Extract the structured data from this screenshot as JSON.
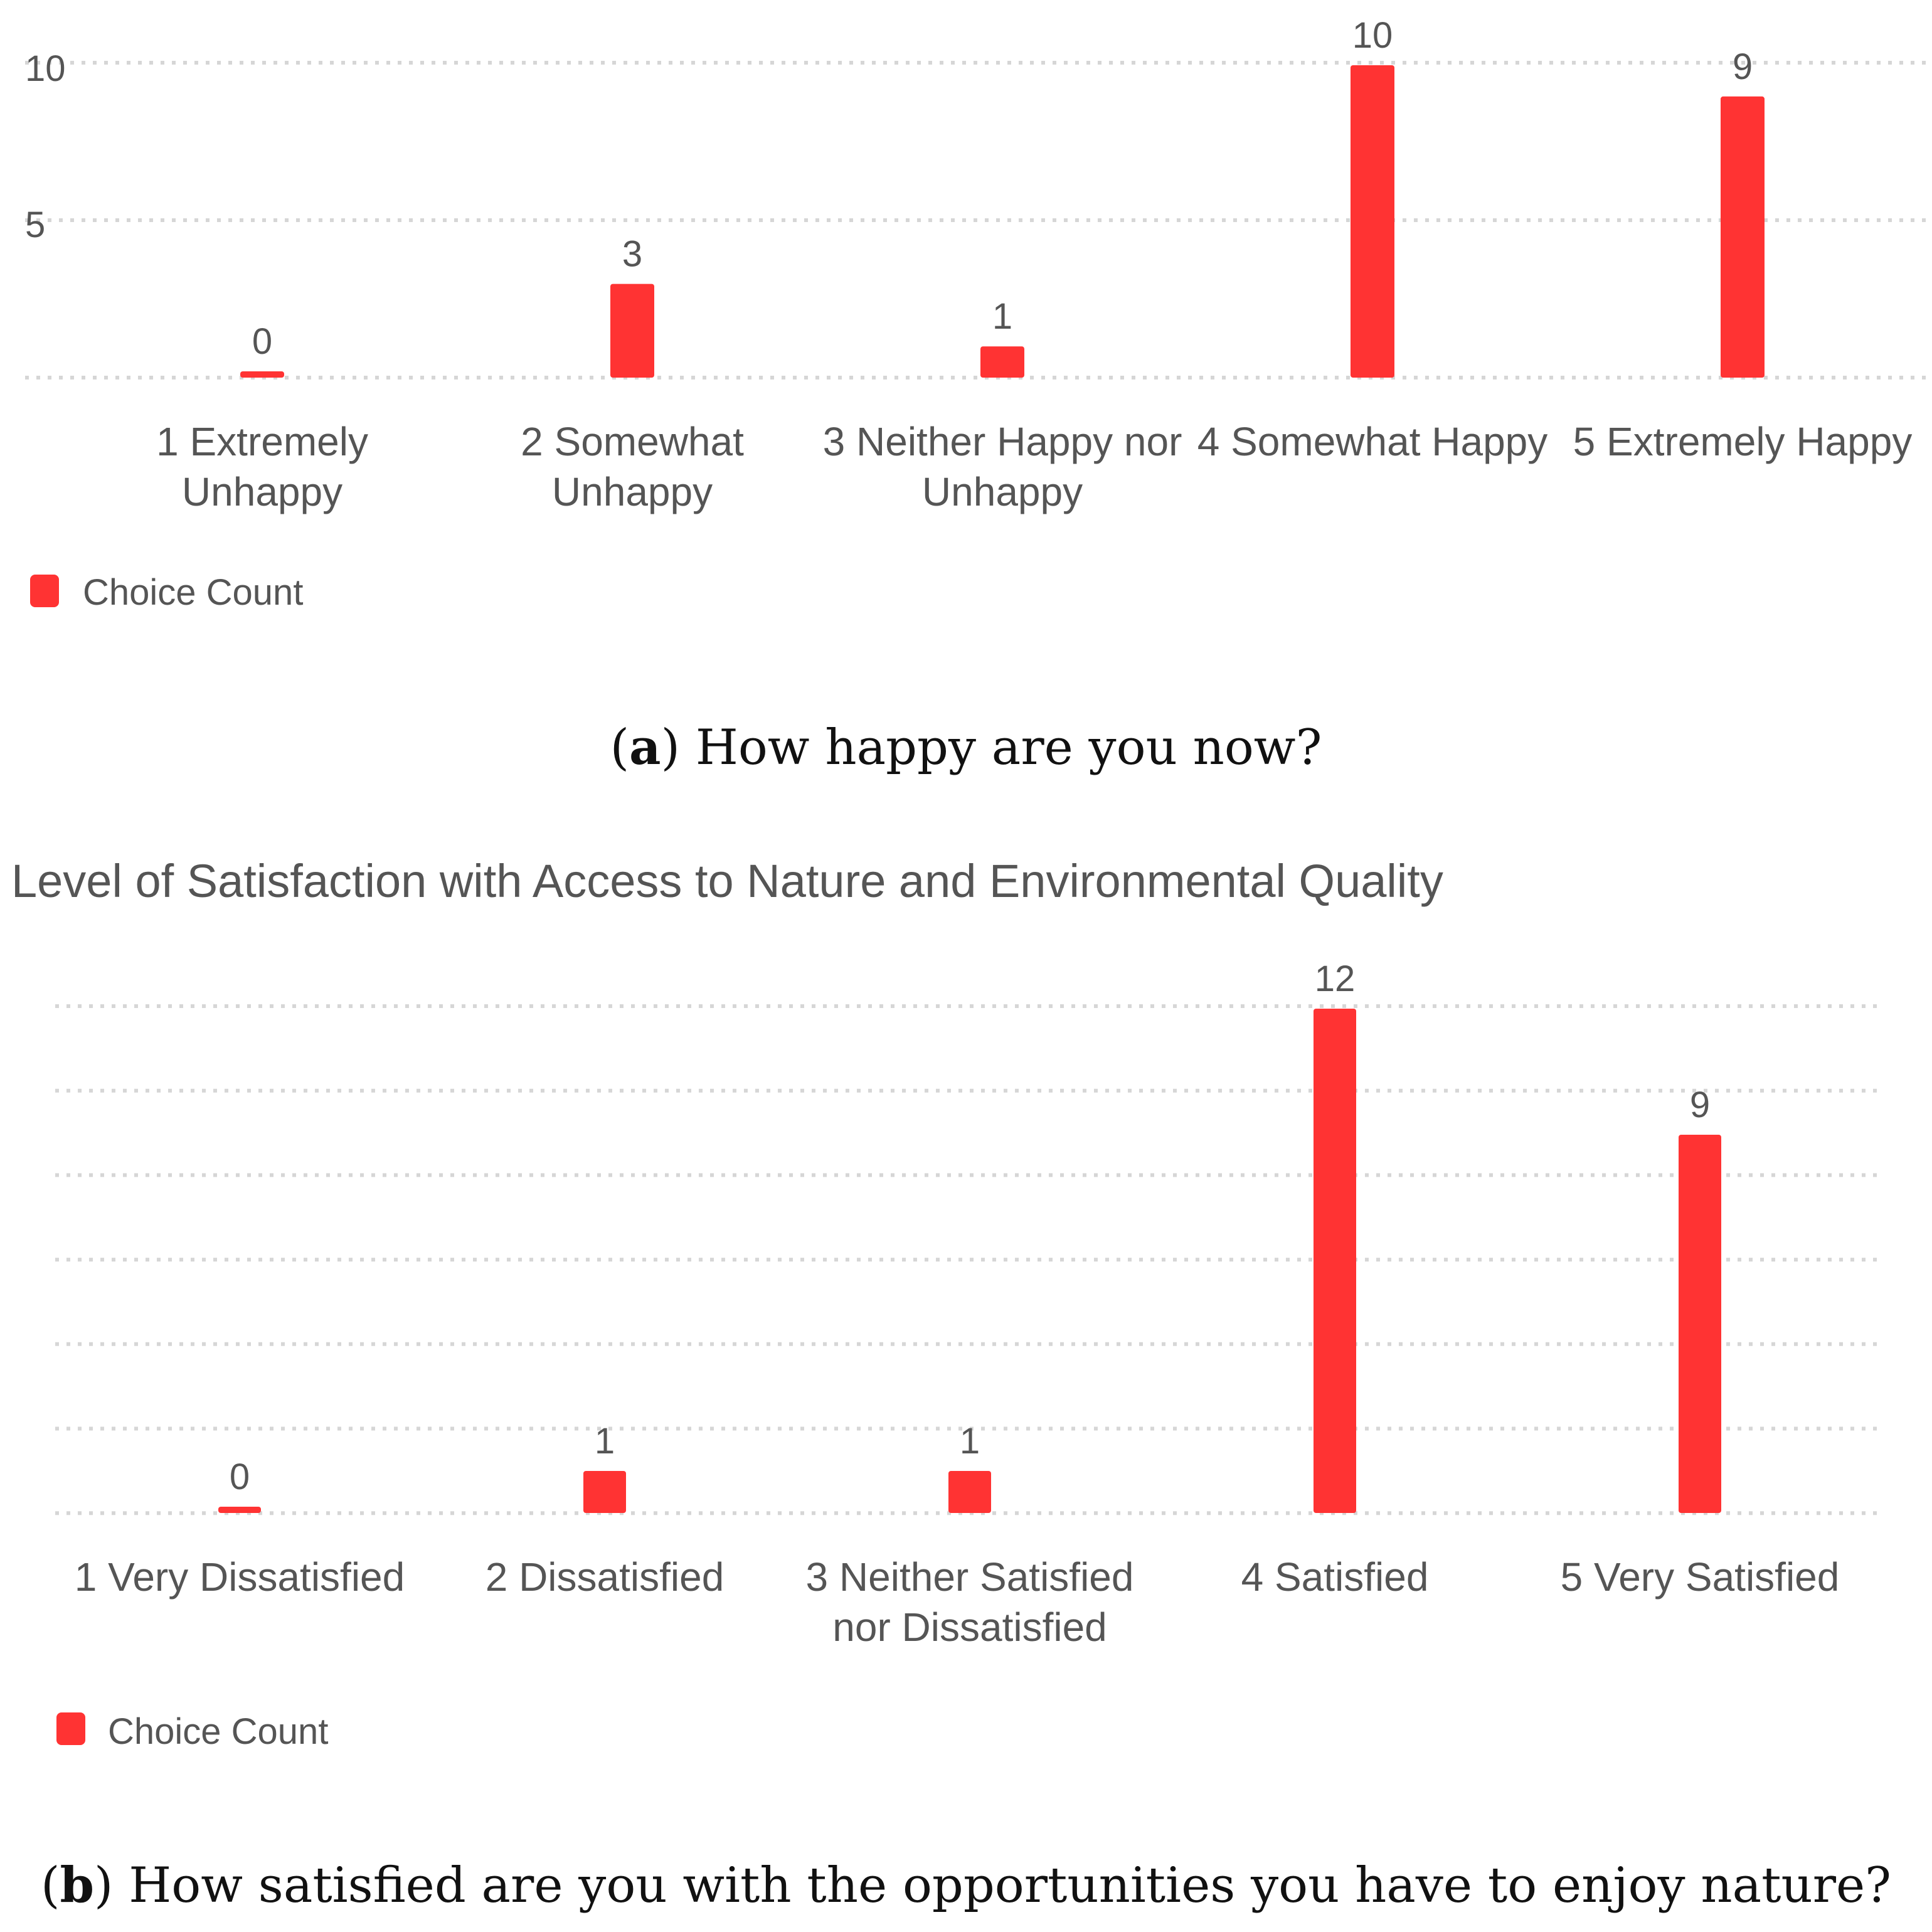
{
  "chart_data": [
    {
      "type": "bar",
      "title": "",
      "categories": [
        [
          "1 Extremely",
          "Unhappy"
        ],
        [
          "2 Somewhat",
          "Unhappy"
        ],
        [
          "3 Neither Happy nor",
          "Unhappy"
        ],
        [
          "4 Somewhat Happy"
        ],
        [
          "5 Extremely Happy"
        ]
      ],
      "values": [
        0,
        3,
        1,
        10,
        9
      ],
      "value_labels": [
        "0",
        "3",
        "1",
        "10",
        "9"
      ],
      "yticks": [
        5,
        10
      ],
      "ylim": [
        0,
        11
      ],
      "legend": {
        "label": "Choice Count",
        "position": "bottom-left"
      },
      "color": "#ff3333",
      "caption": {
        "letter": "a",
        "text": "How happy are you now?"
      }
    },
    {
      "type": "bar",
      "title": "Level of Satisfaction with Access to Nature and Environmental Quality",
      "categories": [
        [
          "1 Very Dissatisfied"
        ],
        [
          "2 Dissatisfied"
        ],
        [
          "3 Neither Satisfied",
          "nor Dissatisfied"
        ],
        [
          "4 Satisfied"
        ],
        [
          "5 Very Satisfied"
        ]
      ],
      "values": [
        0,
        1,
        1,
        12,
        9
      ],
      "value_labels": [
        "0",
        "1",
        "1",
        "12",
        "9"
      ],
      "yticks": [],
      "ylim": [
        0,
        12
      ],
      "legend": {
        "label": "Choice Count",
        "position": "bottom-left"
      },
      "color": "#ff3333",
      "caption": {
        "letter": "b",
        "text": "How satisfied are you with the opportunities you have to enjoy nature?"
      }
    }
  ]
}
